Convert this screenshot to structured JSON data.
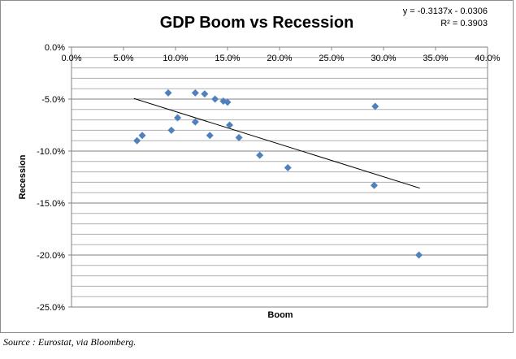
{
  "chart_data": {
    "type": "scatter",
    "title": "GDP Boom vs Recession",
    "xlabel": "Boom",
    "ylabel": "Recession",
    "xlim": [
      0,
      0.4
    ],
    "ylim": [
      -0.25,
      0
    ],
    "x_ticks": [
      "0.0%",
      "5.0%",
      "10.0%",
      "15.0%",
      "20.0%",
      "25.0%",
      "30.0%",
      "35.0%",
      "40.0%"
    ],
    "y_ticks": [
      "0.0%",
      "-5.0%",
      "-10.0%",
      "-15.0%",
      "-20.0%",
      "-25.0%"
    ],
    "grid": "horizontal",
    "marker": "diamond",
    "marker_color": "#4f81bd",
    "trendline_color": "#000000",
    "trendline_x_range": [
      0.06,
      0.335
    ],
    "trendline_slope": -0.3137,
    "trendline_intercept": -0.0306,
    "trendline_equation": "y = -0.3137x - 0.0306",
    "r_squared_label": "R² = 0.3903",
    "points": [
      {
        "x": 0.063,
        "y": -0.09
      },
      {
        "x": 0.068,
        "y": -0.085
      },
      {
        "x": 0.093,
        "y": -0.044
      },
      {
        "x": 0.096,
        "y": -0.08
      },
      {
        "x": 0.102,
        "y": -0.068
      },
      {
        "x": 0.119,
        "y": -0.044
      },
      {
        "x": 0.119,
        "y": -0.072
      },
      {
        "x": 0.128,
        "y": -0.045
      },
      {
        "x": 0.133,
        "y": -0.085
      },
      {
        "x": 0.138,
        "y": -0.05
      },
      {
        "x": 0.146,
        "y": -0.052
      },
      {
        "x": 0.15,
        "y": -0.053
      },
      {
        "x": 0.152,
        "y": -0.075
      },
      {
        "x": 0.161,
        "y": -0.087
      },
      {
        "x": 0.181,
        "y": -0.104
      },
      {
        "x": 0.208,
        "y": -0.116
      },
      {
        "x": 0.291,
        "y": -0.133
      },
      {
        "x": 0.292,
        "y": -0.057
      },
      {
        "x": 0.334,
        "y": -0.2
      }
    ]
  },
  "source_note": "Source : Eurostat, via Bloomberg."
}
